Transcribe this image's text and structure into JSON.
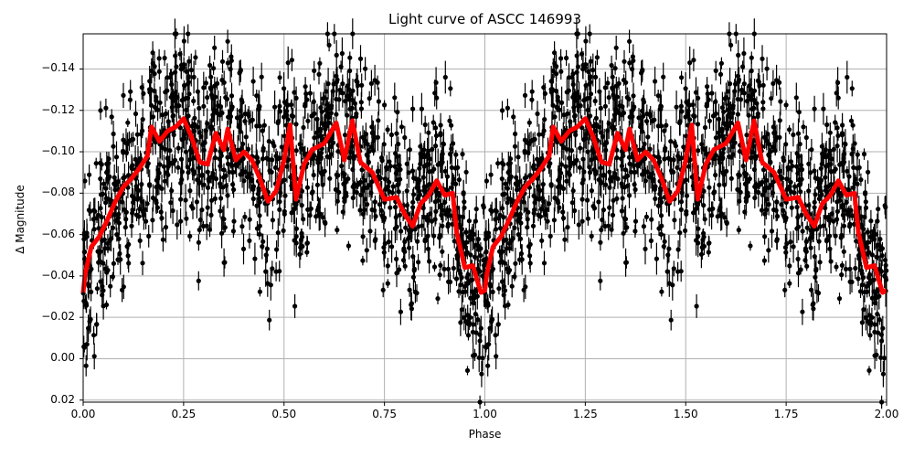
{
  "chart_data": {
    "type": "scatter",
    "title": "Light curve of ASCC 146993",
    "xlabel": "Phase",
    "ylabel": "Δ Magnitude",
    "xlim": [
      0.0,
      2.0
    ],
    "ylim": [
      0.021,
      -0.157
    ],
    "y_inverted": true,
    "grid": true,
    "x_ticks": [
      "0.00",
      "0.25",
      "0.50",
      "0.75",
      "1.00",
      "1.25",
      "1.50",
      "1.75",
      "2.00"
    ],
    "y_ticks": [
      "−0.14",
      "−0.12",
      "−0.10",
      "−0.08",
      "−0.06",
      "−0.04",
      "−0.02",
      "0.00",
      "0.02"
    ],
    "x_tick_values": [
      0.0,
      0.25,
      0.5,
      0.75,
      1.0,
      1.25,
      1.5,
      1.75,
      2.0
    ],
    "y_tick_values": [
      -0.14,
      -0.12,
      -0.1,
      -0.08,
      -0.06,
      -0.04,
      -0.02,
      0.0,
      0.02
    ],
    "series": [
      {
        "name": "observations",
        "style": "black points with error bars",
        "color": "#000000",
        "description": "Dense phase-folded photometry repeated over two cycles; scatter spans roughly −0.157 to +0.02 mag, concentrated between −0.13 and −0.04"
      },
      {
        "name": "binned mean",
        "style": "thick red line",
        "color": "#ff0000",
        "period_repeat": 1.0,
        "x": [
          0.0,
          0.005,
          0.02,
          0.04,
          0.06,
          0.08,
          0.1,
          0.12,
          0.14,
          0.16,
          0.17,
          0.19,
          0.21,
          0.23,
          0.25,
          0.27,
          0.29,
          0.31,
          0.33,
          0.35,
          0.36,
          0.38,
          0.4,
          0.42,
          0.44,
          0.46,
          0.48,
          0.5,
          0.515,
          0.53,
          0.55,
          0.57,
          0.6,
          0.63,
          0.65,
          0.67,
          0.69,
          0.72,
          0.75,
          0.78,
          0.8,
          0.82,
          0.84,
          0.86,
          0.88,
          0.9,
          0.92,
          0.93,
          0.95,
          0.97,
          0.99,
          1.0
        ],
        "values": [
          -0.032,
          -0.041,
          -0.054,
          -0.059,
          -0.067,
          -0.076,
          -0.083,
          -0.087,
          -0.092,
          -0.098,
          -0.112,
          -0.105,
          -0.11,
          -0.112,
          -0.116,
          -0.107,
          -0.095,
          -0.094,
          -0.109,
          -0.101,
          -0.111,
          -0.096,
          -0.1,
          -0.096,
          -0.087,
          -0.076,
          -0.081,
          -0.096,
          -0.113,
          -0.077,
          -0.094,
          -0.101,
          -0.104,
          -0.114,
          -0.096,
          -0.115,
          -0.095,
          -0.09,
          -0.077,
          -0.078,
          -0.07,
          -0.064,
          -0.075,
          -0.079,
          -0.086,
          -0.079,
          -0.08,
          -0.061,
          -0.044,
          -0.045,
          -0.032,
          -0.033
        ]
      }
    ]
  }
}
